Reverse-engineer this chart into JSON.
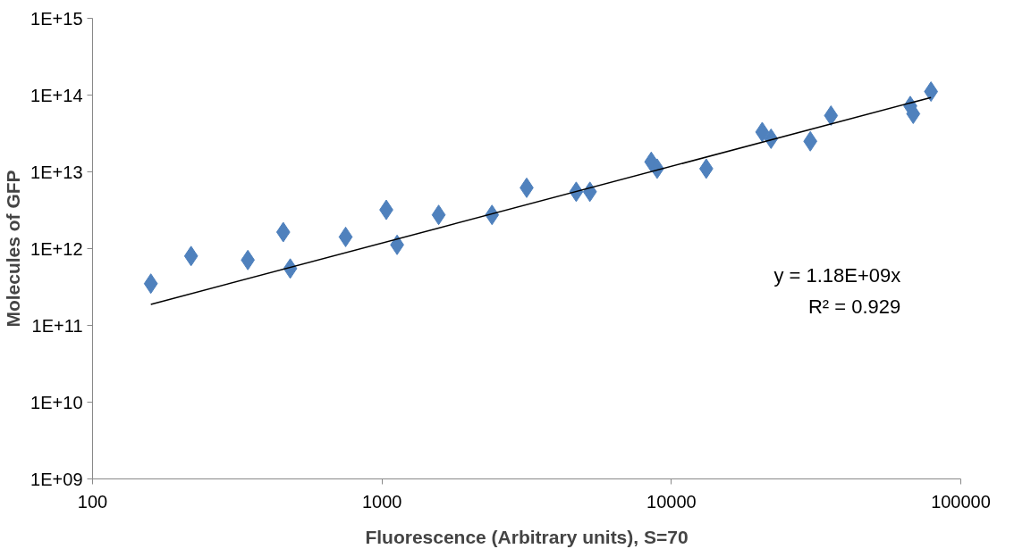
{
  "chart_data": {
    "type": "scatter",
    "xlabel": "Fluorescence (Arbitrary units), S=70",
    "ylabel": "Molecules of GFP",
    "log": "xy",
    "grid": false,
    "marker": "diamond",
    "xlim": [
      100,
      100000
    ],
    "xticks": [
      100,
      1000,
      10000,
      100000
    ],
    "ylim": [
      1000000000.0,
      1000000000000000.0
    ],
    "yticks": [
      {
        "value": 1000000000.0,
        "label": "1E+09"
      },
      {
        "value": 10000000000.0,
        "label": "1E+10"
      },
      {
        "value": 100000000000.0,
        "label": "1E+11"
      },
      {
        "value": 1000000000000.0,
        "label": "1E+12"
      },
      {
        "value": 10000000000000.0,
        "label": "1E+13"
      },
      {
        "value": 100000000000000.0,
        "label": "1E+14"
      },
      {
        "value": 1000000000000000.0,
        "label": "1E+15"
      }
    ],
    "annotations": [
      "y = 1.18E+09x",
      "R² = 0.929"
    ],
    "series": [
      {
        "color": "#4f81bd",
        "x": [
          159,
          219,
          344,
          456,
          482,
          749,
          1035,
          1128,
          1570,
          2400,
          3162,
          4690,
          5230,
          8520,
          8930,
          13200,
          20600,
          22100,
          30200,
          35600,
          66900,
          68500,
          78900
        ],
        "values": [
          350000000000.0,
          800000000000.0,
          710000000000.0,
          1640000000000.0,
          550000000000.0,
          1420000000000.0,
          3200000000000.0,
          1120000000000.0,
          2750000000000.0,
          2750000000000.0,
          6200000000000.0,
          5500000000000.0,
          5500000000000.0,
          13500000000000.0,
          11000000000000.0,
          11000000000000.0,
          33000000000000.0,
          27000000000000.0,
          25000000000000.0,
          54000000000000.0,
          72000000000000.0,
          57000000000000.0,
          111000000000000.0
        ]
      },
      {
        "type": "line",
        "color": "#000000",
        "marker": "none",
        "x": [
          159,
          78900
        ],
        "values": [
          187600000000.0,
          93100000000000.0
        ]
      }
    ]
  }
}
